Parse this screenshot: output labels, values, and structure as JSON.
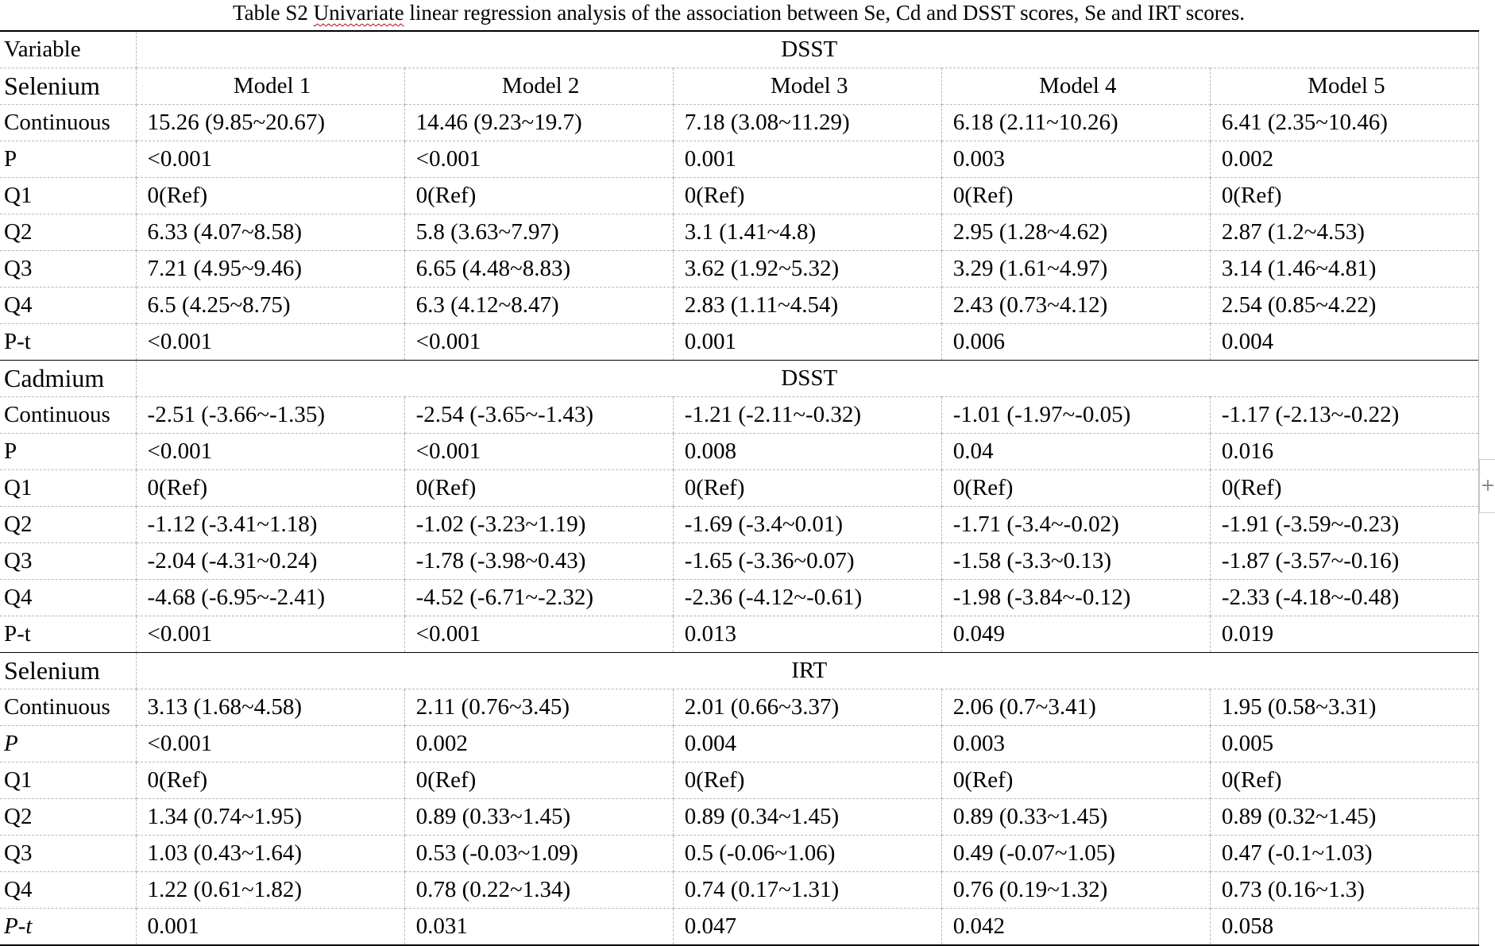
{
  "caption": {
    "prefix": "Table S2 ",
    "flagged_word": "Univariate",
    "suffix": " linear regression analysis of the association between Se, Cd and DSST scores, Se and IRT scores."
  },
  "header": {
    "variable": "Variable",
    "outcome": "DSST"
  },
  "models": [
    "Model 1",
    "Model 2",
    "Model 3",
    "Model 4",
    "Model 5"
  ],
  "sections": [
    {
      "exposure": "Selenium",
      "outcome": "",
      "rows": [
        {
          "label": "Continuous",
          "italic": false,
          "values": [
            "15.26 (9.85~20.67)",
            "14.46 (9.23~19.7)",
            "7.18 (3.08~11.29)",
            "6.18 (2.11~10.26)",
            "6.41 (2.35~10.46)"
          ]
        },
        {
          "label": "P",
          "italic": false,
          "values": [
            "<0.001",
            "<0.001",
            "0.001",
            "0.003",
            "0.002"
          ]
        },
        {
          "label": "Q1",
          "italic": false,
          "values": [
            "0(Ref)",
            "0(Ref)",
            "0(Ref)",
            "0(Ref)",
            "0(Ref)"
          ]
        },
        {
          "label": "Q2",
          "italic": false,
          "values": [
            "6.33 (4.07~8.58)",
            "5.8 (3.63~7.97)",
            "3.1 (1.41~4.8)",
            "2.95 (1.28~4.62)",
            "2.87 (1.2~4.53)"
          ]
        },
        {
          "label": "Q3",
          "italic": false,
          "values": [
            "7.21 (4.95~9.46)",
            "6.65 (4.48~8.83)",
            "3.62 (1.92~5.32)",
            "3.29 (1.61~4.97)",
            "3.14 (1.46~4.81)"
          ]
        },
        {
          "label": "Q4",
          "italic": false,
          "values": [
            "6.5 (4.25~8.75)",
            "6.3 (4.12~8.47)",
            "2.83 (1.11~4.54)",
            "2.43 (0.73~4.12)",
            "2.54 (0.85~4.22)"
          ]
        },
        {
          "label": "P-t",
          "italic": false,
          "values": [
            "<0.001",
            "<0.001",
            "0.001",
            "0.006",
            "0.004"
          ]
        }
      ]
    },
    {
      "exposure": "Cadmium",
      "outcome": "DSST",
      "rows": [
        {
          "label": "Continuous",
          "italic": false,
          "values": [
            "-2.51 (-3.66~-1.35)",
            "-2.54 (-3.65~-1.43)",
            "-1.21 (-2.11~-0.32)",
            "-1.01 (-1.97~-0.05)",
            "-1.17 (-2.13~-0.22)"
          ]
        },
        {
          "label": "P",
          "italic": false,
          "values": [
            "<0.001",
            "<0.001",
            "0.008",
            "0.04",
            "0.016"
          ]
        },
        {
          "label": "Q1",
          "italic": false,
          "values": [
            "0(Ref)",
            "0(Ref)",
            "0(Ref)",
            "0(Ref)",
            "0(Ref)"
          ]
        },
        {
          "label": "Q2",
          "italic": false,
          "values": [
            "-1.12 (-3.41~1.18)",
            "-1.02 (-3.23~1.19)",
            "-1.69 (-3.4~0.01)",
            "-1.71 (-3.4~-0.02)",
            "-1.91 (-3.59~-0.23)"
          ]
        },
        {
          "label": "Q3",
          "italic": false,
          "values": [
            "-2.04 (-4.31~0.24)",
            "-1.78 (-3.98~0.43)",
            "-1.65 (-3.36~0.07)",
            "-1.58 (-3.3~0.13)",
            "-1.87 (-3.57~-0.16)"
          ]
        },
        {
          "label": "Q4",
          "italic": false,
          "values": [
            "-4.68 (-6.95~-2.41)",
            "-4.52 (-6.71~-2.32)",
            "-2.36 (-4.12~-0.61)",
            "-1.98 (-3.84~-0.12)",
            "-2.33 (-4.18~-0.48)"
          ]
        },
        {
          "label": "P-t",
          "italic": false,
          "values": [
            "<0.001",
            "<0.001",
            "0.013",
            "0.049",
            "0.019"
          ]
        }
      ]
    },
    {
      "exposure": "Selenium",
      "outcome": "IRT",
      "rows": [
        {
          "label": "Continuous",
          "italic": false,
          "values": [
            "3.13 (1.68~4.58)",
            "2.11 (0.76~3.45)",
            "2.01 (0.66~3.37)",
            "2.06 (0.7~3.41)",
            "1.95 (0.58~3.31)"
          ]
        },
        {
          "label": "P",
          "italic": true,
          "values": [
            "<0.001",
            "0.002",
            "0.004",
            "0.003",
            "0.005"
          ]
        },
        {
          "label": "Q1",
          "italic": false,
          "values": [
            "0(Ref)",
            "0(Ref)",
            "0(Ref)",
            "0(Ref)",
            "0(Ref)"
          ]
        },
        {
          "label": "Q2",
          "italic": false,
          "values": [
            "1.34 (0.74~1.95)",
            "0.89 (0.33~1.45)",
            "0.89 (0.34~1.45)",
            "0.89 (0.33~1.45)",
            "0.89 (0.32~1.45)"
          ]
        },
        {
          "label": "Q3",
          "italic": false,
          "values": [
            "1.03 (0.43~1.64)",
            "0.53 (-0.03~1.09)",
            "0.5 (-0.06~1.06)",
            "0.49 (-0.07~1.05)",
            "0.47 (-0.1~1.03)"
          ]
        },
        {
          "label": "Q4",
          "italic": false,
          "values": [
            "1.22 (0.61~1.82)",
            "0.78 (0.22~1.34)",
            "0.74 (0.17~1.31)",
            "0.76 (0.19~1.32)",
            "0.73 (0.16~1.3)"
          ]
        },
        {
          "label": "P-t",
          "italic": true,
          "values": [
            "0.001",
            "0.031",
            "0.047",
            "0.042",
            "0.058"
          ]
        }
      ]
    }
  ],
  "edge_control": {
    "glyph": "+"
  }
}
